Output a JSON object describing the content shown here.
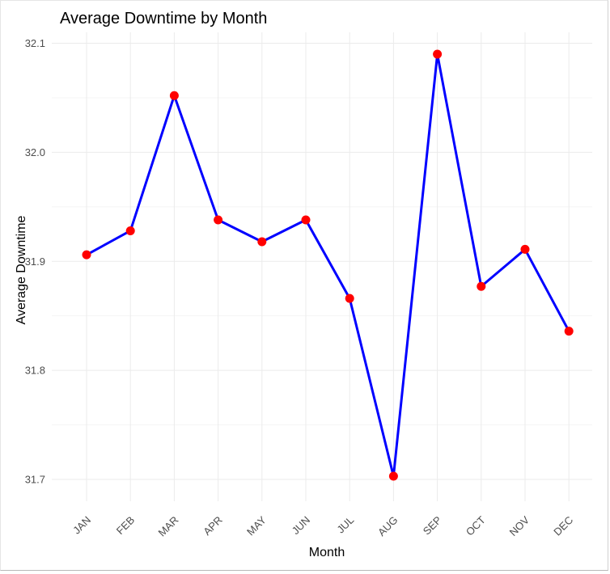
{
  "chart_data": {
    "type": "line",
    "title": "Average Downtime by Month",
    "xlabel": "Month",
    "ylabel": "Average Downtime",
    "categories": [
      "JAN",
      "FEB",
      "MAR",
      "APR",
      "MAY",
      "JUN",
      "JUL",
      "AUG",
      "SEP",
      "OCT",
      "NOV",
      "DEC"
    ],
    "values": [
      31.906,
      31.928,
      32.052,
      31.938,
      31.918,
      31.938,
      31.866,
      31.703,
      32.09,
      31.877,
      31.911,
      31.836
    ],
    "yticks": [
      31.7,
      31.8,
      31.9,
      32.0,
      32.1
    ],
    "ytick_labels": [
      "31.7",
      "31.8",
      "31.9",
      "32.0",
      "32.1"
    ],
    "ylim": [
      31.68,
      32.11
    ],
    "grid": true,
    "line_color": "#0000ff",
    "point_color": "#ff0000"
  }
}
